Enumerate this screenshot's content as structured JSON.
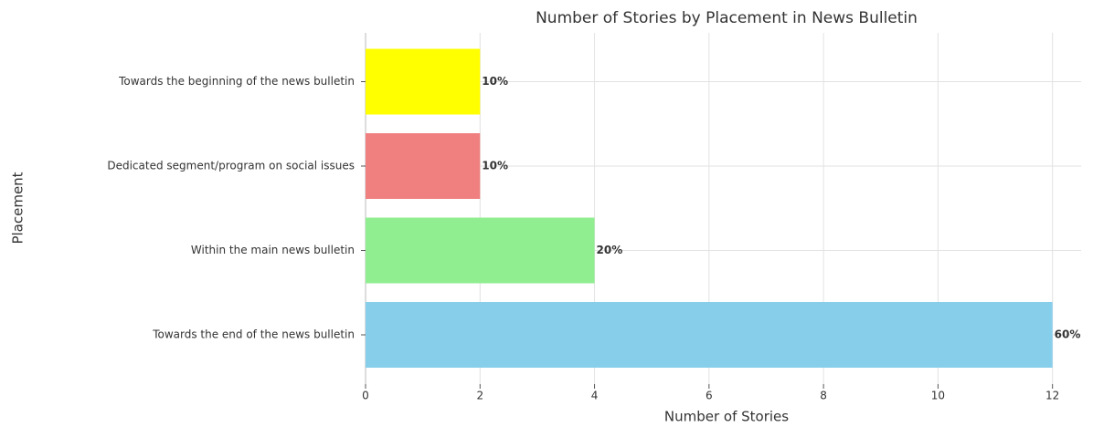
{
  "chart_data": {
    "type": "barh",
    "title": "Number of Stories by Placement in News Bulletin",
    "xlabel": "Number of Stories",
    "ylabel": "Placement",
    "categories": [
      "Towards the end of the news bulletin",
      "Within the main news bulletin",
      "Dedicated segment/program on social issues",
      "Towards the beginning of the news bulletin"
    ],
    "values": [
      12,
      4,
      2,
      2
    ],
    "colors": [
      "#87ceeb",
      "#90ee90",
      "#f08080",
      "#ffff00"
    ],
    "annotations": [
      "60%",
      "20%",
      "10%",
      "10%"
    ],
    "xlim": [
      0,
      12.5
    ],
    "xticks": [
      0,
      2,
      4,
      6,
      8,
      10,
      12
    ],
    "grid": true
  }
}
